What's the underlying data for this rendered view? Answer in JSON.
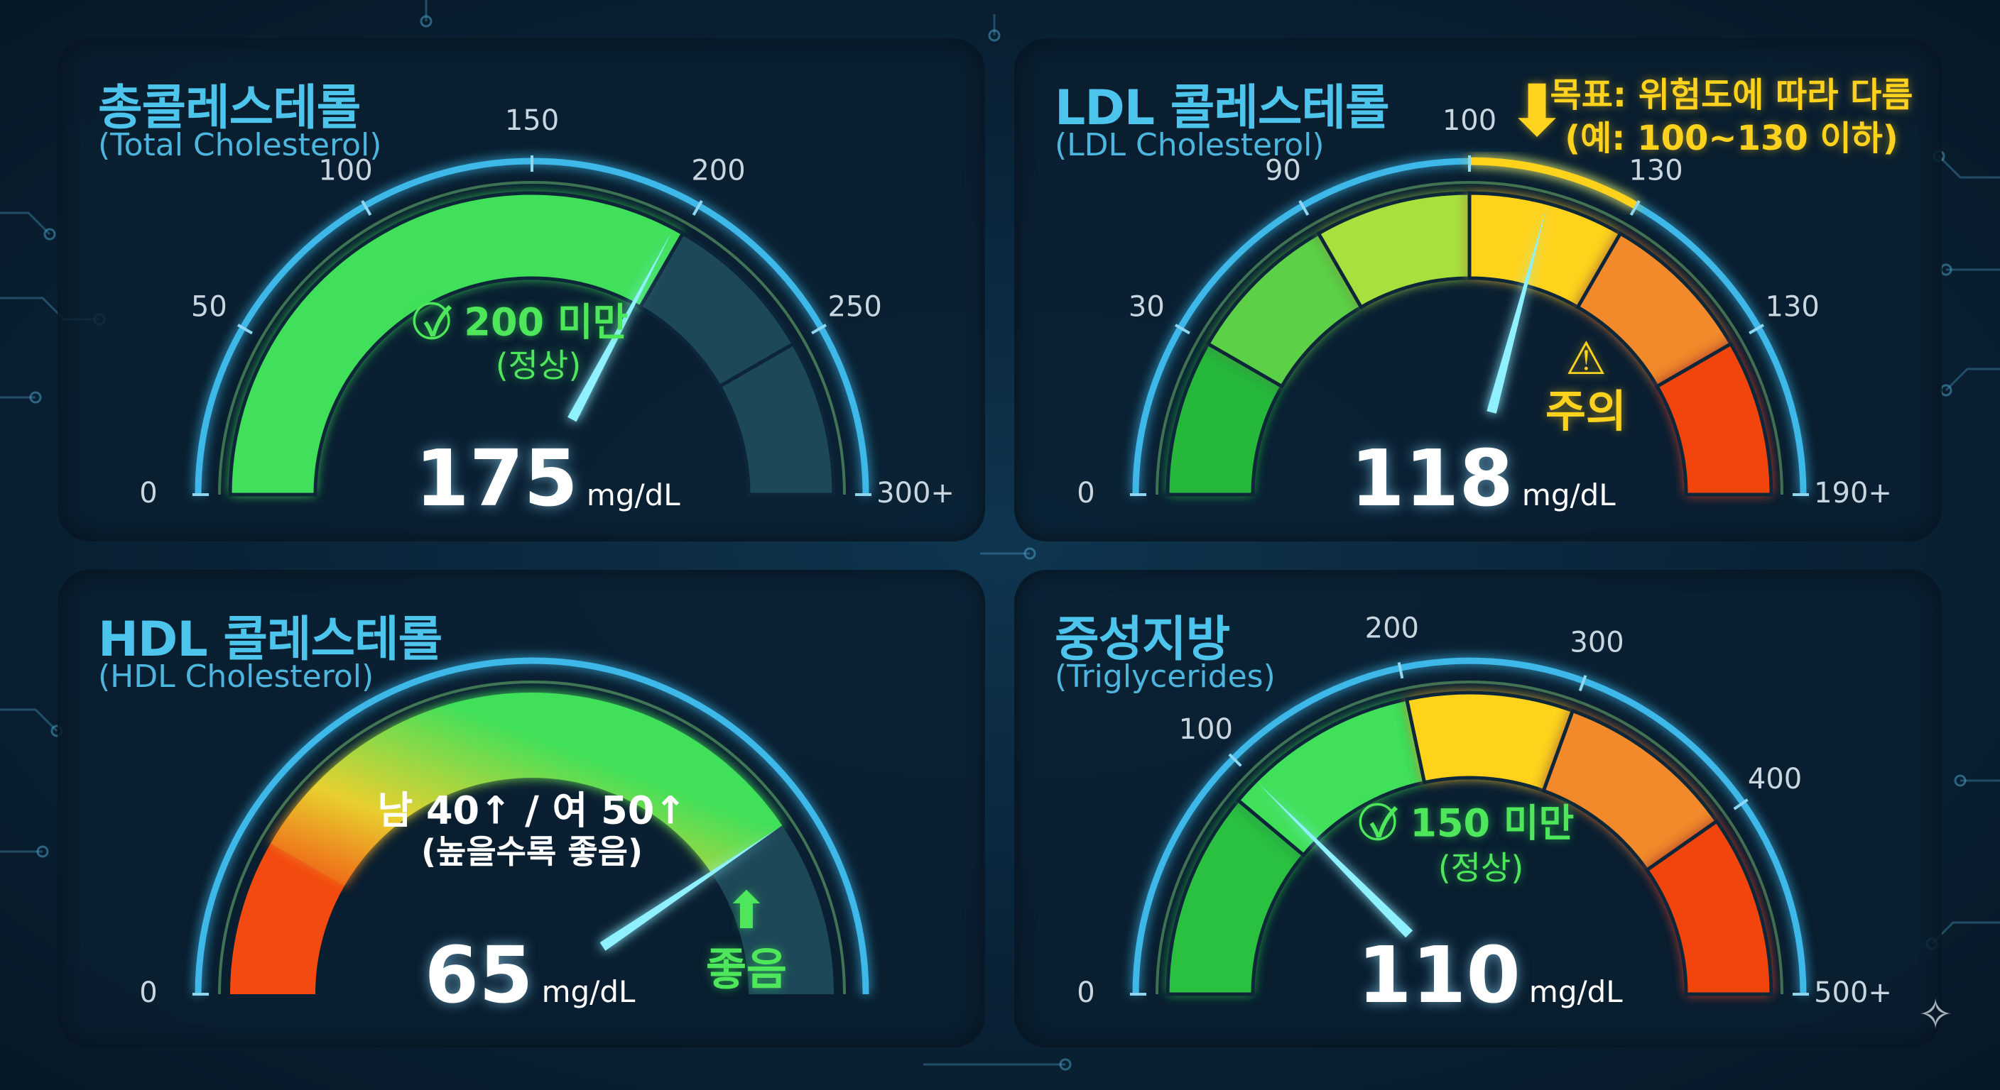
{
  "unit": "mg/dL",
  "gauges": [
    {
      "title": "총콜레스테롤",
      "subtitle": "(Total Cholesterol)",
      "ticks": [
        "0",
        "50",
        "100",
        "150",
        "200",
        "250",
        "300+"
      ],
      "value": "175",
      "status": "200 미만",
      "status_note": "(정상)",
      "status_icon": "check-circle-icon",
      "colors": {
        "fill": "#3fe05a",
        "rest": "#1d4858"
      }
    },
    {
      "title": "LDL 콜레스테롤",
      "subtitle": "(LDL Cholesterol)",
      "ticks": [
        "0",
        "30",
        "90",
        "100",
        "130",
        "130",
        "190+"
      ],
      "value": "118",
      "target_line1": "목표: 위험도에 따라 다름",
      "target_line2": "(예: 100~130 이하)",
      "status": "주의",
      "status_icon": "warning-icon",
      "colors": {
        "segments": [
          "#27b83a",
          "#5cd146",
          "#a8e03e",
          "#ffd21e",
          "#f2892a",
          "#f2440e"
        ]
      }
    },
    {
      "title": "HDL 콜레스테롤",
      "subtitle": "(HDL Cholesterol)",
      "ticks": [
        "0"
      ],
      "value": "65",
      "note_line1": "남 40↑ / 여 50↑",
      "note_line2": "(높을수록 좋음)",
      "status": "좋음",
      "status_icon": "arrow-up-icon",
      "colors": {
        "low": "#f24a10",
        "mid": "#e8d030",
        "high": "#3fe05a",
        "rest": "#1d4858"
      }
    },
    {
      "title": "중성지방",
      "subtitle": "(Triglycerides)",
      "ticks": [
        "0",
        "100",
        "200",
        "300",
        "400",
        "500+"
      ],
      "value": "110",
      "status": "150 미만",
      "status_note": "(정상)",
      "status_icon": "check-circle-icon",
      "colors": {
        "segments": [
          "#2cc040",
          "#3fe05a",
          "#ffd21e",
          "#f2892a",
          "#f2440e"
        ]
      }
    }
  ]
}
